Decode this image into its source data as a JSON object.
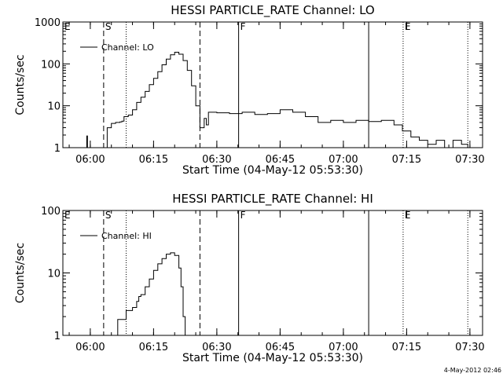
{
  "footer_stamp": "4-May-2012 02:46",
  "chart_data": [
    {
      "type": "line",
      "title": "HESSI PARTICLE_RATE Channel: LO",
      "xlabel": "Start Time (04-May-12 05:53:30)",
      "ylabel": "Counts/sec",
      "y_scale": "log",
      "ylim": [
        1,
        1000
      ],
      "xlim": [
        "05:53:30",
        "07:33:00"
      ],
      "x_ticks": [
        "06:00",
        "06:15",
        "06:30",
        "06:45",
        "07:00",
        "07:15",
        "07:30"
      ],
      "y_ticks": [
        "1",
        "10",
        "100",
        "1000"
      ],
      "grid": false,
      "legend_position": "top-left",
      "series": [
        {
          "name": "Channel: LO",
          "points": [
            [
              "05:59:00",
              1.0
            ],
            [
              "05:59:10",
              1.9
            ],
            [
              "05:59:20",
              1.0
            ],
            [
              "05:59:40",
              0.8
            ],
            [
              "06:00:00",
              0.8
            ],
            [
              "06:01:00",
              0.8
            ],
            [
              "06:02:00",
              0.8
            ],
            [
              "06:03:30",
              1.0
            ],
            [
              "06:04:00",
              3.0
            ],
            [
              "06:05:00",
              3.8
            ],
            [
              "06:06:00",
              4.0
            ],
            [
              "06:07:00",
              4.1
            ],
            [
              "06:07:30",
              4.3
            ],
            [
              "06:08:00",
              5.5
            ],
            [
              "06:09:00",
              6.0
            ],
            [
              "06:10:00",
              8.0
            ],
            [
              "06:11:00",
              12.0
            ],
            [
              "06:12:00",
              16.0
            ],
            [
              "06:13:00",
              22.0
            ],
            [
              "06:14:00",
              32.0
            ],
            [
              "06:15:00",
              45.0
            ],
            [
              "06:16:00",
              65.0
            ],
            [
              "06:17:00",
              95.0
            ],
            [
              "06:18:00",
              130.0
            ],
            [
              "06:19:00",
              165.0
            ],
            [
              "06:20:00",
              190.0
            ],
            [
              "06:21:00",
              170.0
            ],
            [
              "06:22:00",
              120.0
            ],
            [
              "06:23:00",
              70.0
            ],
            [
              "06:24:00",
              30.0
            ],
            [
              "06:25:00",
              10.0
            ],
            [
              "06:26:00",
              3.0
            ],
            [
              "06:27:00",
              5.0
            ],
            [
              "06:27:30",
              3.5
            ],
            [
              "06:28:00",
              7.0
            ],
            [
              "06:30:00",
              6.8
            ],
            [
              "06:33:00",
              6.5
            ],
            [
              "06:36:00",
              7.0
            ],
            [
              "06:39:00",
              6.2
            ],
            [
              "06:42:00",
              6.5
            ],
            [
              "06:45:00",
              8.0
            ],
            [
              "06:48:00",
              7.0
            ],
            [
              "06:51:00",
              5.5
            ],
            [
              "06:54:00",
              4.0
            ],
            [
              "06:57:00",
              4.5
            ],
            [
              "07:00:00",
              4.0
            ],
            [
              "07:03:00",
              4.5
            ],
            [
              "07:06:00",
              4.2
            ],
            [
              "07:09:00",
              4.5
            ],
            [
              "07:12:00",
              3.5
            ],
            [
              "07:14:00",
              2.5
            ],
            [
              "07:16:00",
              1.8
            ],
            [
              "07:18:00",
              1.5
            ],
            [
              "07:20:00",
              1.2
            ],
            [
              "07:22:00",
              1.5
            ],
            [
              "07:24:00",
              1.0
            ],
            [
              "07:26:00",
              1.5
            ],
            [
              "07:28:00",
              1.2
            ],
            [
              "07:29:30",
              1.0
            ]
          ]
        }
      ],
      "markers": [
        {
          "label": "E",
          "time": "05:53:30",
          "style": "dotted"
        },
        {
          "label": "S",
          "time": "06:03:10",
          "style": "dashed"
        },
        {
          "label": "",
          "time": "06:08:30",
          "style": "dotted"
        },
        {
          "label": "",
          "time": "06:26:00",
          "style": "dashed"
        },
        {
          "label": "F",
          "time": "06:35:10",
          "style": "solid"
        },
        {
          "label": "",
          "time": "07:06:00",
          "style": "solid"
        },
        {
          "label": "E",
          "time": "07:14:10",
          "style": "dotted"
        },
        {
          "label": "",
          "time": "07:29:30",
          "style": "dotted"
        }
      ]
    },
    {
      "type": "line",
      "title": "HESSI PARTICLE_RATE Channel: HI",
      "xlabel": "Start Time (04-May-12 05:53:30)",
      "ylabel": "Counts/sec",
      "y_scale": "log",
      "ylim": [
        1,
        100
      ],
      "xlim": [
        "05:53:30",
        "07:33:00"
      ],
      "x_ticks": [
        "06:00",
        "06:15",
        "06:30",
        "06:45",
        "07:00",
        "07:15",
        "07:30"
      ],
      "y_ticks": [
        "1",
        "10",
        "100"
      ],
      "grid": false,
      "legend_position": "top-left",
      "series": [
        {
          "name": "Channel: HI",
          "points": [
            [
              "06:05:30",
              0.9
            ],
            [
              "06:06:00",
              1.0
            ],
            [
              "06:06:30",
              1.8
            ],
            [
              "06:07:00",
              1.8
            ],
            [
              "06:08:00",
              1.8
            ],
            [
              "06:08:30",
              2.5
            ],
            [
              "06:09:30",
              2.5
            ],
            [
              "06:10:00",
              2.8
            ],
            [
              "06:11:00",
              3.5
            ],
            [
              "06:11:30",
              4.2
            ],
            [
              "06:12:00",
              4.5
            ],
            [
              "06:13:00",
              6.0
            ],
            [
              "06:14:00",
              8.0
            ],
            [
              "06:15:00",
              11.0
            ],
            [
              "06:16:00",
              14.0
            ],
            [
              "06:17:00",
              17.0
            ],
            [
              "06:18:00",
              20.0
            ],
            [
              "06:19:00",
              21.0
            ],
            [
              "06:20:00",
              19.0
            ],
            [
              "06:21:00",
              12.0
            ],
            [
              "06:21:30",
              6.0
            ],
            [
              "06:22:00",
              2.0
            ],
            [
              "06:22:30",
              1.0
            ],
            [
              "06:22:40",
              0.9
            ]
          ]
        }
      ],
      "markers": [
        {
          "label": "E",
          "time": "05:53:30",
          "style": "dotted"
        },
        {
          "label": "S",
          "time": "06:03:10",
          "style": "dashed"
        },
        {
          "label": "",
          "time": "06:08:30",
          "style": "dotted"
        },
        {
          "label": "",
          "time": "06:26:00",
          "style": "dashed"
        },
        {
          "label": "F",
          "time": "06:35:10",
          "style": "solid"
        },
        {
          "label": "",
          "time": "07:06:00",
          "style": "solid"
        },
        {
          "label": "E",
          "time": "07:14:10",
          "style": "dotted"
        },
        {
          "label": "",
          "time": "07:29:30",
          "style": "dotted"
        }
      ]
    }
  ]
}
